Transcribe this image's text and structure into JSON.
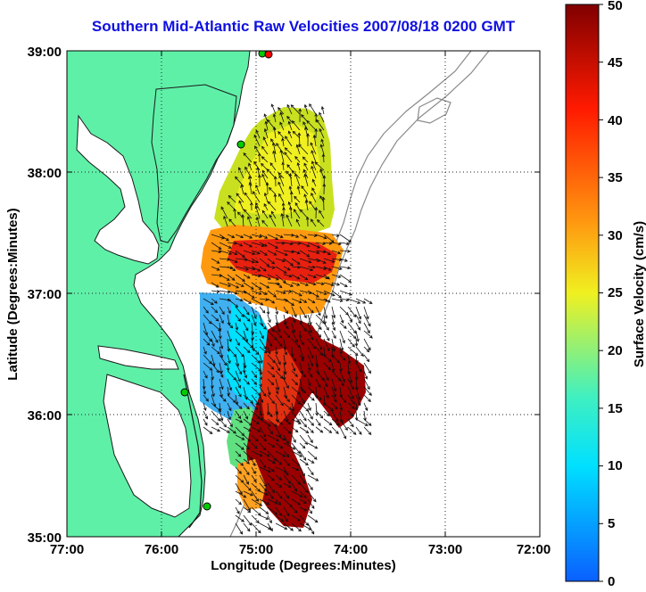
{
  "title": "Southern Mid-Atlantic Raw Velocities 2007/08/18 0200 GMT",
  "xlabel": "Longitude (Degrees:Minutes)",
  "ylabel": "Latitude (Degrees:Minutes)",
  "colorbar": {
    "label": "Surface Velocity (cm/s)",
    "ticks": [
      "0",
      "5",
      "10",
      "15",
      "20",
      "25",
      "30",
      "35",
      "40",
      "45",
      "50"
    ],
    "range": [
      0,
      50
    ],
    "colormap": "jet"
  },
  "map": {
    "lon_ticks": [
      "77:00",
      "76:00",
      "75:00",
      "74:00",
      "73:00",
      "72:00"
    ],
    "lat_ticks": [
      "39:00",
      "38:00",
      "37:00",
      "36:00",
      "35:00"
    ],
    "lon_range": [
      -77,
      -72
    ],
    "lat_range": [
      35,
      39
    ],
    "grid": "dotted",
    "colors": {
      "land": "#5ff0a8",
      "water": "#ffffff",
      "coastline": "#000000",
      "bathymetry": "#808080",
      "sites": "#00cc00",
      "site_alert": "#ff0000"
    }
  }
}
